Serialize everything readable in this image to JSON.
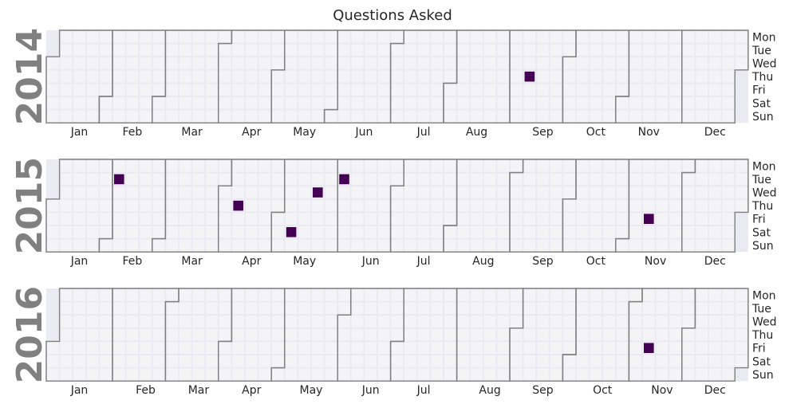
{
  "title": "Questions Asked",
  "colors": {
    "figure_background": "#ffffff",
    "axes_background": "#eaeaf2",
    "empty_cell": "#f4f4f6",
    "cell_border": "#eaeaf2",
    "month_border": "#808080",
    "year_label": "#808080",
    "event_fill": "#440154",
    "text": "#262626"
  },
  "chart_data": {
    "type": "heatmap",
    "subtype": "calendar",
    "title": "Questions Asked",
    "weekday_labels": [
      "Mon",
      "Tue",
      "Wed",
      "Thu",
      "Fri",
      "Sat",
      "Sun"
    ],
    "month_labels": [
      "Jan",
      "Feb",
      "Mar",
      "Apr",
      "May",
      "Jun",
      "Jul",
      "Aug",
      "Sep",
      "Oct",
      "Nov",
      "Dec"
    ],
    "years": [
      {
        "year": "2014",
        "event_dates": [
          "2014-09-11"
        ]
      },
      {
        "year": "2015",
        "event_dates": [
          "2015-02-03",
          "2015-04-09",
          "2015-05-09",
          "2015-05-20",
          "2015-06-02",
          "2015-11-13"
        ]
      },
      {
        "year": "2016",
        "event_dates": [
          "2016-11-11"
        ]
      }
    ],
    "value_levels": [
      0,
      1
    ],
    "grid": true,
    "legend": "none"
  }
}
